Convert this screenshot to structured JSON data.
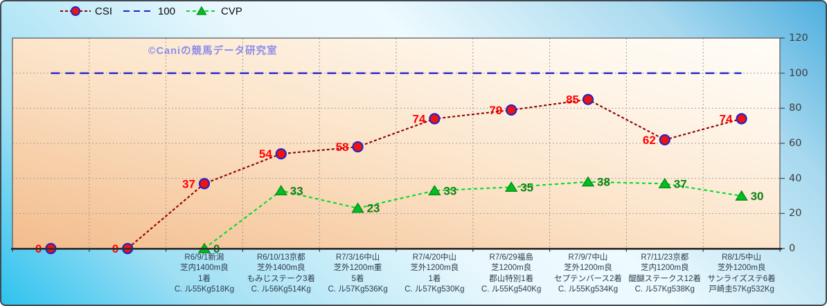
{
  "watermark": "©Caniの競馬データ研究室",
  "legend": {
    "items": [
      {
        "label": "CSI"
      },
      {
        "label": "100"
      },
      {
        "label": "CVP"
      }
    ]
  },
  "chart_data": {
    "type": "line",
    "title": "",
    "legend_position": "top",
    "grid": true,
    "slots": 10,
    "y_axis": {
      "side": "right",
      "min": 0,
      "max": 120,
      "step": 20,
      "ticks": [
        0,
        20,
        40,
        60,
        80,
        100,
        120
      ]
    },
    "categories": [
      {
        "slot": 3,
        "lines": [
          "R6/9/1新潟",
          "芝内1400m良",
          "1着",
          "C. ル55Kg518Kg"
        ]
      },
      {
        "slot": 4,
        "lines": [
          "R6/10/13京都",
          "芝外1400m良",
          "もみじステーク3着",
          "C. ル56Kg514Kg"
        ]
      },
      {
        "slot": 5,
        "lines": [
          "R7/3/16中山",
          "芝外1200m重",
          "5着",
          "C. ル57Kg536Kg"
        ]
      },
      {
        "slot": 6,
        "lines": [
          "R7/4/20中山",
          "芝外1200m良",
          "1着",
          "C. ル57Kg530Kg"
        ]
      },
      {
        "slot": 7,
        "lines": [
          "R7/6/29福島",
          "芝1200m良",
          "郡山特別1着",
          "C. ル55Kg540Kg"
        ]
      },
      {
        "slot": 8,
        "lines": [
          "R7/9/7中山",
          "芝外1200m良",
          "セプテンバース2着",
          "C. ル55Kg534Kg"
        ]
      },
      {
        "slot": 9,
        "lines": [
          "R7/11/23京都",
          "芝内1200m良",
          "醍醐ステークス12着",
          "C. ル57Kg538Kg"
        ]
      },
      {
        "slot": 10,
        "lines": [
          "R8/1/5中山",
          "芝外1200m良",
          "サンライズステ6着",
          "戸崎圭57Kg532Kg"
        ]
      }
    ],
    "series": [
      {
        "name": "CSI",
        "marker": "circle",
        "line_color": "#8B0000",
        "label_color": "#FF0000",
        "marker_fill": "#EE1212",
        "marker_stroke": "#2424C4",
        "dash": "4 3",
        "label_side": "left",
        "show_labels": true,
        "points": [
          {
            "slot": 1,
            "value": 0
          },
          {
            "slot": 2,
            "value": 0
          },
          {
            "slot": 3,
            "value": 37
          },
          {
            "slot": 4,
            "value": 54
          },
          {
            "slot": 5,
            "value": 58
          },
          {
            "slot": 6,
            "value": 74
          },
          {
            "slot": 7,
            "value": 79
          },
          {
            "slot": 8,
            "value": 85
          },
          {
            "slot": 9,
            "value": 62
          },
          {
            "slot": 10,
            "value": 74
          }
        ]
      },
      {
        "name": "100",
        "marker": "none",
        "line_color": "#2222CC",
        "label_color": "#2222CC",
        "dash": "13 8",
        "label_side": "none",
        "show_labels": false,
        "points": [
          {
            "slot": 1,
            "value": 100
          },
          {
            "slot": 10,
            "value": 100
          }
        ]
      },
      {
        "name": "CVP",
        "marker": "triangle",
        "line_color": "#00DC28",
        "label_color": "#0D7F14",
        "marker_fill": "#00BE24",
        "marker_stroke": "#0A8A12",
        "dash": "5 4",
        "label_side": "right",
        "show_labels": true,
        "points": [
          {
            "slot": 3,
            "value": 0
          },
          {
            "slot": 4,
            "value": 33
          },
          {
            "slot": 5,
            "value": 23
          },
          {
            "slot": 6,
            "value": 33
          },
          {
            "slot": 7,
            "value": 35
          },
          {
            "slot": 8,
            "value": 38
          },
          {
            "slot": 9,
            "value": 37
          },
          {
            "slot": 10,
            "value": 30
          }
        ]
      }
    ]
  }
}
